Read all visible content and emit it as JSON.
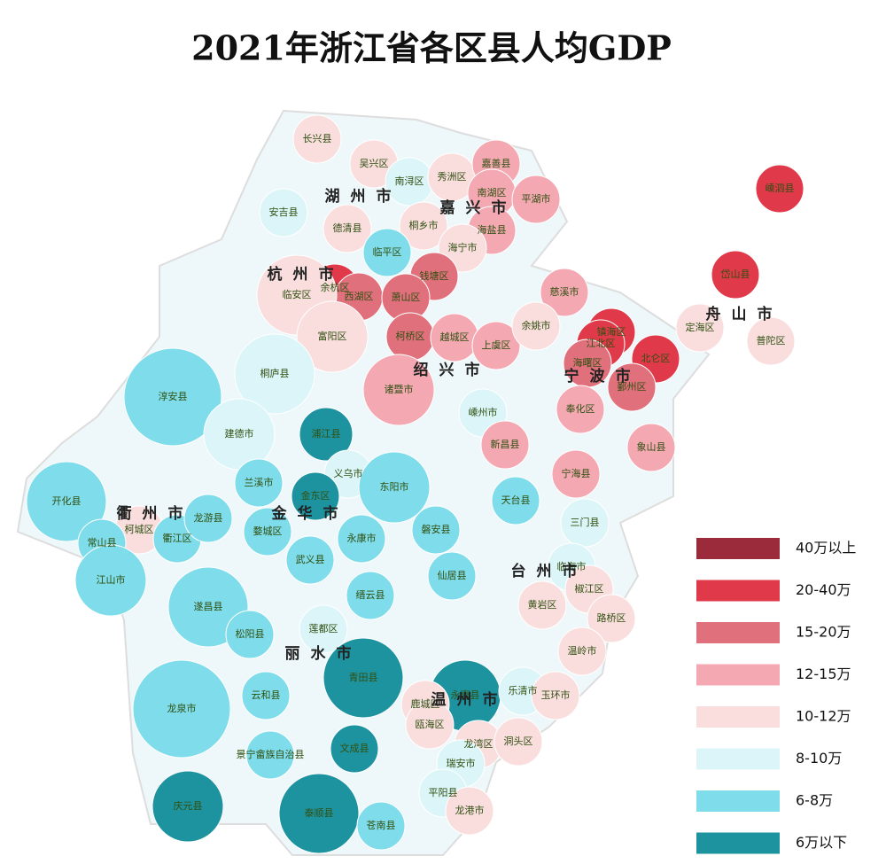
{
  "title": "2021年浙江省各区县人均GDP",
  "legend": [
    {
      "label": "40万以上",
      "color": "#9b2a3a"
    },
    {
      "label": "20-40万",
      "color": "#e03a4a"
    },
    {
      "label": "15-20万",
      "color": "#e0707c"
    },
    {
      "label": "12-15万",
      "color": "#f4a9b2"
    },
    {
      "label": "10-12万",
      "color": "#fadede"
    },
    {
      "label": "8-10万",
      "color": "#dcf5f8"
    },
    {
      "label": "6-8万",
      "color": "#7fdcea"
    },
    {
      "label": "6万以下",
      "color": "#1e93a0"
    }
  ],
  "cities": [
    "湖州市",
    "嘉兴市",
    "杭州市",
    "绍兴市",
    "宁波市",
    "舟山市",
    "衢州市",
    "金华市",
    "台州市",
    "丽水市",
    "温州市"
  ],
  "counties": [
    {
      "name": "长兴县",
      "color": "#fadede"
    },
    {
      "name": "吴兴区",
      "color": "#fadede"
    },
    {
      "name": "南浔区",
      "color": "#dcf5f8"
    },
    {
      "name": "安吉县",
      "color": "#dcf5f8"
    },
    {
      "name": "德清县",
      "color": "#fadede"
    },
    {
      "name": "秀洲区",
      "color": "#fadede"
    },
    {
      "name": "嘉善县",
      "color": "#f4a9b2"
    },
    {
      "name": "南湖区",
      "color": "#f4a9b2"
    },
    {
      "name": "平湖市",
      "color": "#f4a9b2"
    },
    {
      "name": "桐乡市",
      "color": "#fadede"
    },
    {
      "name": "海盐县",
      "color": "#f4a9b2"
    },
    {
      "name": "海宁市",
      "color": "#fadede"
    },
    {
      "name": "临平区",
      "color": "#7fdcea"
    },
    {
      "name": "余杭区",
      "color": "#e03a4a"
    },
    {
      "name": "西湖区",
      "color": "#e0707c"
    },
    {
      "name": "钱塘区",
      "color": "#e0707c"
    },
    {
      "name": "萧山区",
      "color": "#e0707c"
    },
    {
      "name": "临安区",
      "color": "#fadede"
    },
    {
      "name": "富阳区",
      "color": "#fadede"
    },
    {
      "name": "柯桥区",
      "color": "#e0707c"
    },
    {
      "name": "越城区",
      "color": "#f4a9b2"
    },
    {
      "name": "上虞区",
      "color": "#f4a9b2"
    },
    {
      "name": "诸暨市",
      "color": "#f4a9b2"
    },
    {
      "name": "嵊州市",
      "color": "#dcf5f8"
    },
    {
      "name": "新昌县",
      "color": "#f4a9b2"
    },
    {
      "name": "桐庐县",
      "color": "#dcf5f8"
    },
    {
      "name": "淳安县",
      "color": "#7fdcea"
    },
    {
      "name": "建德市",
      "color": "#dcf5f8"
    },
    {
      "name": "浦江县",
      "color": "#1e93a0"
    },
    {
      "name": "义乌市",
      "color": "#dcf5f8"
    },
    {
      "name": "东阳市",
      "color": "#7fdcea"
    },
    {
      "name": "金东区",
      "color": "#1e93a0"
    },
    {
      "name": "兰溪市",
      "color": "#7fdcea"
    },
    {
      "name": "婺城区",
      "color": "#7fdcea"
    },
    {
      "name": "永康市",
      "color": "#7fdcea"
    },
    {
      "name": "武义县",
      "color": "#7fdcea"
    },
    {
      "name": "磐安县",
      "color": "#7fdcea"
    },
    {
      "name": "开化县",
      "color": "#7fdcea"
    },
    {
      "name": "柯城区",
      "color": "#fadede"
    },
    {
      "name": "衢江区",
      "color": "#7fdcea"
    },
    {
      "name": "常山县",
      "color": "#7fdcea"
    },
    {
      "name": "江山市",
      "color": "#7fdcea"
    },
    {
      "name": "龙游县",
      "color": "#7fdcea"
    },
    {
      "name": "慈溪市",
      "color": "#f4a9b2"
    },
    {
      "name": "余姚市",
      "color": "#fadede"
    },
    {
      "name": "镇海区",
      "color": "#e03a4a"
    },
    {
      "name": "江北区",
      "color": "#e03a4a"
    },
    {
      "name": "北仑区",
      "color": "#e03a4a"
    },
    {
      "name": "海曙区",
      "color": "#e0707c"
    },
    {
      "name": "鄞州区",
      "color": "#e0707c"
    },
    {
      "name": "奉化区",
      "color": "#f4a9b2"
    },
    {
      "name": "象山县",
      "color": "#f4a9b2"
    },
    {
      "name": "宁海县",
      "color": "#f4a9b2"
    },
    {
      "name": "嵊泗县",
      "color": "#e03a4a"
    },
    {
      "name": "岱山县",
      "color": "#e03a4a"
    },
    {
      "name": "定海区",
      "color": "#fadede"
    },
    {
      "name": "普陀区",
      "color": "#fadede"
    },
    {
      "name": "天台县",
      "color": "#7fdcea"
    },
    {
      "name": "三门县",
      "color": "#dcf5f8"
    },
    {
      "name": "临海市",
      "color": "#dcf5f8"
    },
    {
      "name": "仙居县",
      "color": "#7fdcea"
    },
    {
      "name": "缙云县",
      "color": "#7fdcea"
    },
    {
      "name": "椒江区",
      "color": "#fadede"
    },
    {
      "name": "黄岩区",
      "color": "#fadede"
    },
    {
      "name": "路桥区",
      "color": "#fadede"
    },
    {
      "name": "遂昌县",
      "color": "#7fdcea"
    },
    {
      "name": "松阳县",
      "color": "#7fdcea"
    },
    {
      "name": "莲都区",
      "color": "#dcf5f8"
    },
    {
      "name": "温岭市",
      "color": "#fadede"
    },
    {
      "name": "青田县",
      "color": "#1e93a0"
    },
    {
      "name": "永嘉县",
      "color": "#1e93a0"
    },
    {
      "name": "乐清市",
      "color": "#dcf5f8"
    },
    {
      "name": "云和县",
      "color": "#7fdcea"
    },
    {
      "name": "龙泉市",
      "color": "#7fdcea"
    },
    {
      "name": "玉环市",
      "color": "#fadede"
    },
    {
      "name": "鹿城区",
      "color": "#fadede"
    },
    {
      "name": "瓯海区",
      "color": "#fadede"
    },
    {
      "name": "龙湾区",
      "color": "#fadede"
    },
    {
      "name": "洞头区",
      "color": "#fadede"
    },
    {
      "name": "景宁畲族自治县",
      "color": "#7fdcea"
    },
    {
      "name": "文成县",
      "color": "#1e93a0"
    },
    {
      "name": "瑞安市",
      "color": "#dcf5f8"
    },
    {
      "name": "平阳县",
      "color": "#dcf5f8"
    },
    {
      "name": "庆元县",
      "color": "#1e93a0"
    },
    {
      "name": "泰顺县",
      "color": "#1e93a0"
    },
    {
      "name": "苍南县",
      "color": "#7fdcea"
    },
    {
      "name": "龙港市",
      "color": "#fadede"
    }
  ]
}
